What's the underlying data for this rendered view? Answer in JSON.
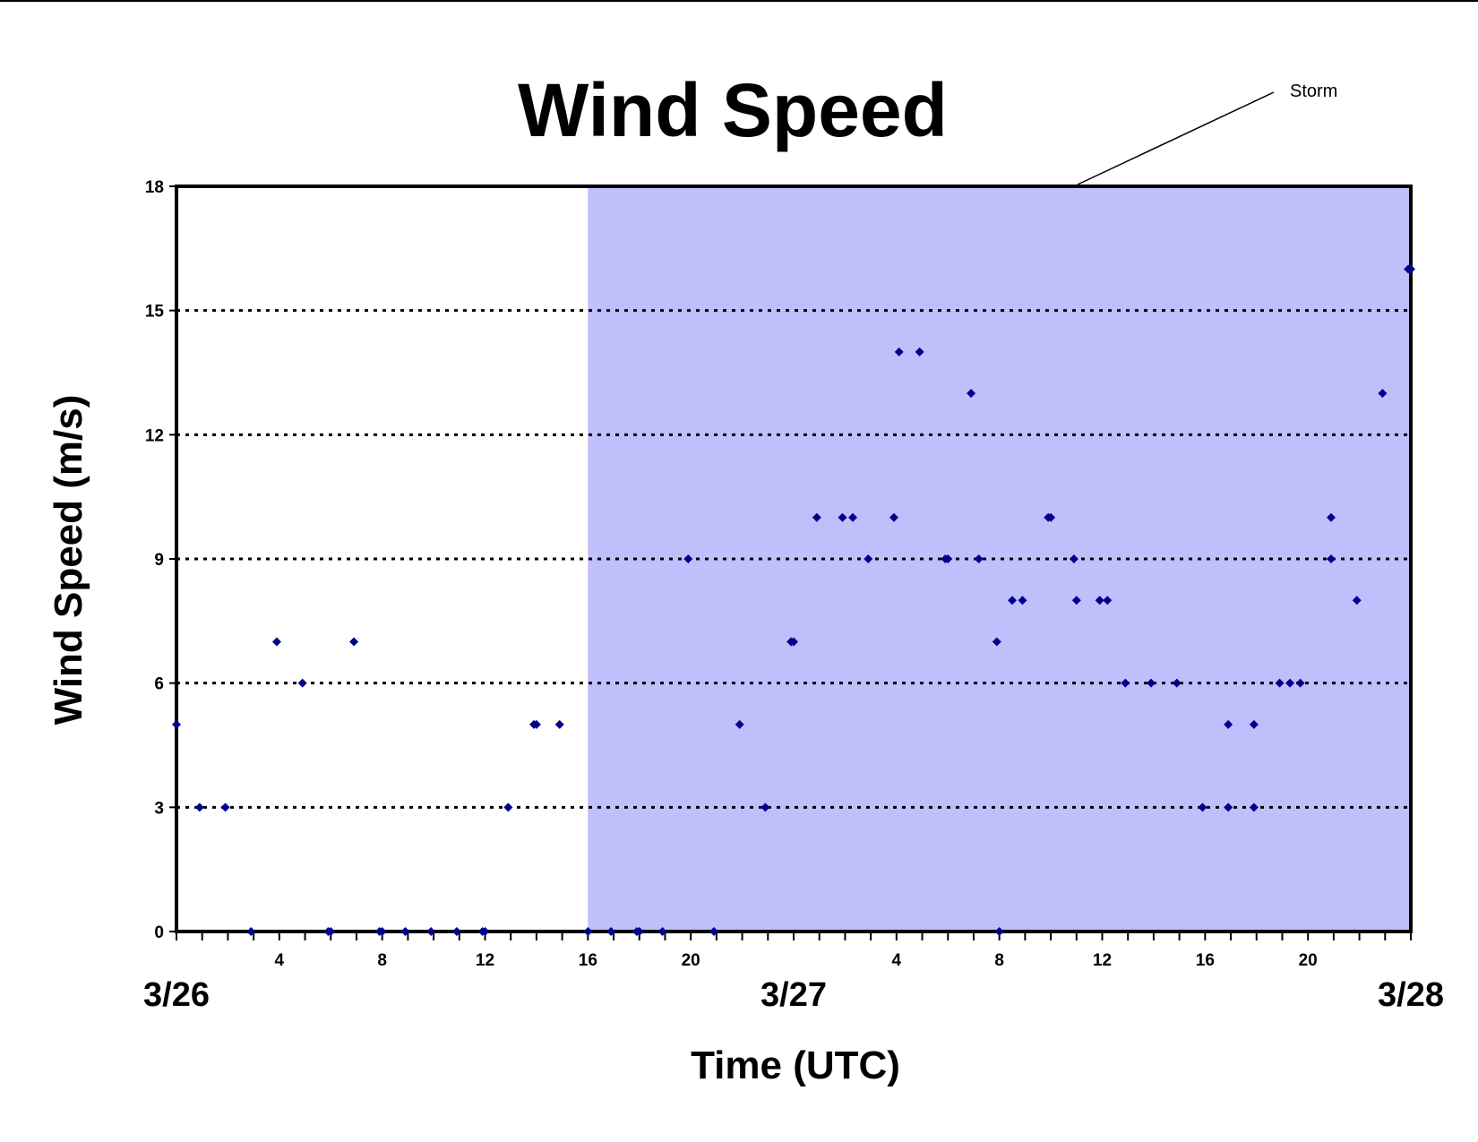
{
  "chart_data": {
    "type": "scatter",
    "title": "Wind Speed",
    "xlabel": "Time (UTC)",
    "ylabel": "Wind Speed (m/s)",
    "x_unit": "hours from 3/26 00 UTC",
    "xlim": [
      0,
      48
    ],
    "ylim": [
      0,
      18
    ],
    "yticks": [
      0,
      3,
      6,
      9,
      12,
      15,
      18
    ],
    "grid": "horizontal dotted at 3, 6, 9, 12, 15",
    "legend": "none",
    "hour_ticks": [
      {
        "x": 4,
        "label": "4"
      },
      {
        "x": 8,
        "label": "8"
      },
      {
        "x": 12,
        "label": "12"
      },
      {
        "x": 16,
        "label": "16"
      },
      {
        "x": 20,
        "label": "20"
      },
      {
        "x": 28,
        "label": "4"
      },
      {
        "x": 32,
        "label": "8"
      },
      {
        "x": 36,
        "label": "12"
      },
      {
        "x": 40,
        "label": "16"
      },
      {
        "x": 44,
        "label": "20"
      }
    ],
    "date_labels": [
      {
        "x": 0,
        "label": "3/26"
      },
      {
        "x": 24,
        "label": "3/27"
      },
      {
        "x": 48,
        "label": "3/28"
      }
    ],
    "shaded_region": {
      "x_start": 16,
      "x_end": 48,
      "label": "Storm",
      "color": "#bfbffb"
    },
    "marker_color": "#00008b",
    "series": [
      {
        "points": [
          [
            0,
            5
          ],
          [
            0.9,
            3
          ],
          [
            1.9,
            3
          ],
          [
            2.9,
            0
          ],
          [
            3.9,
            7
          ],
          [
            4.9,
            6
          ],
          [
            5.9,
            0
          ],
          [
            6,
            0
          ],
          [
            6.9,
            7
          ],
          [
            7.9,
            0
          ],
          [
            8,
            0
          ],
          [
            8.9,
            0
          ],
          [
            9.9,
            0
          ],
          [
            10.9,
            0
          ],
          [
            11.9,
            0
          ],
          [
            12,
            0
          ],
          [
            12.9,
            3
          ],
          [
            13.9,
            5
          ],
          [
            14,
            5
          ],
          [
            14.9,
            5
          ],
          [
            16,
            0
          ],
          [
            16.9,
            0
          ],
          [
            17.9,
            0
          ],
          [
            18,
            0
          ],
          [
            18.9,
            0
          ],
          [
            19.9,
            9
          ],
          [
            20.9,
            0
          ],
          [
            21.9,
            5
          ],
          [
            22.9,
            3
          ],
          [
            23.9,
            7
          ],
          [
            24,
            7
          ],
          [
            24.9,
            10
          ],
          [
            25.9,
            10
          ],
          [
            26.3,
            10
          ],
          [
            26.9,
            9
          ],
          [
            27.9,
            10
          ],
          [
            28.1,
            14
          ],
          [
            28.9,
            14
          ],
          [
            29.9,
            9
          ],
          [
            30,
            9
          ],
          [
            30.9,
            13
          ],
          [
            31.2,
            9
          ],
          [
            31.9,
            7
          ],
          [
            32,
            0
          ],
          [
            32.5,
            8
          ],
          [
            32.9,
            8
          ],
          [
            33.9,
            10
          ],
          [
            34,
            10
          ],
          [
            34.9,
            9
          ],
          [
            35,
            8
          ],
          [
            35.9,
            8
          ],
          [
            36.2,
            8
          ],
          [
            36.9,
            6
          ],
          [
            37.9,
            6
          ],
          [
            38.9,
            6
          ],
          [
            39.9,
            3
          ],
          [
            40.9,
            5
          ],
          [
            40.9,
            3
          ],
          [
            41.9,
            5
          ],
          [
            41.9,
            3
          ],
          [
            42.9,
            6
          ],
          [
            43.3,
            6
          ],
          [
            43.7,
            6
          ],
          [
            44.9,
            10
          ],
          [
            44.9,
            9
          ],
          [
            45.9,
            8
          ],
          [
            46.9,
            13
          ],
          [
            47.9,
            16
          ],
          [
            48,
            16
          ]
        ]
      }
    ]
  }
}
